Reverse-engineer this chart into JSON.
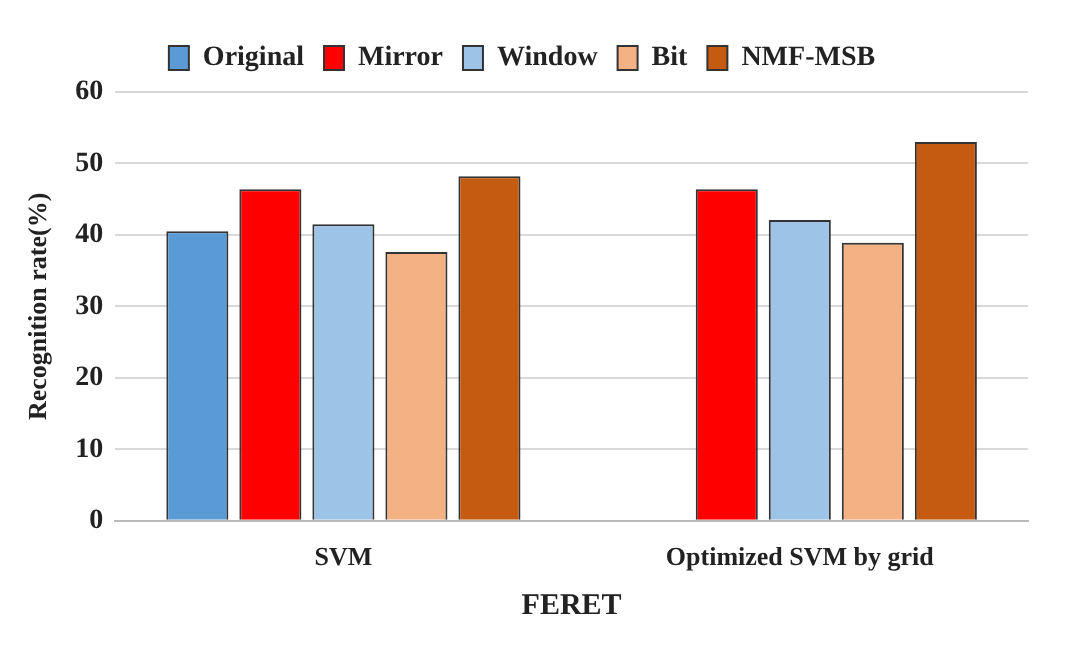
{
  "chart_data": {
    "type": "bar",
    "xlabel": "FERET",
    "ylabel": "Recognition rate(%)",
    "categories": [
      "SVM",
      "Optimized SVM by grid"
    ],
    "series": [
      {
        "name": "Original",
        "color": "#5b9bd5",
        "values": [
          40.5,
          null
        ]
      },
      {
        "name": "Mirror",
        "color": "#ff0000",
        "values": [
          46.4,
          46.4
        ]
      },
      {
        "name": "Window",
        "color": "#9dc3e6",
        "values": [
          41.5,
          42.1
        ]
      },
      {
        "name": "Bit",
        "color": "#f4b183",
        "values": [
          37.6,
          38.9
        ]
      },
      {
        "name": "NMF-MSB",
        "color": "#c55a11",
        "values": [
          48.2,
          53.0
        ]
      }
    ],
    "ylim": [
      0,
      60
    ],
    "yticks": [
      0,
      10,
      20,
      30,
      40,
      50,
      60
    ],
    "grid": "y",
    "legend": "top"
  }
}
